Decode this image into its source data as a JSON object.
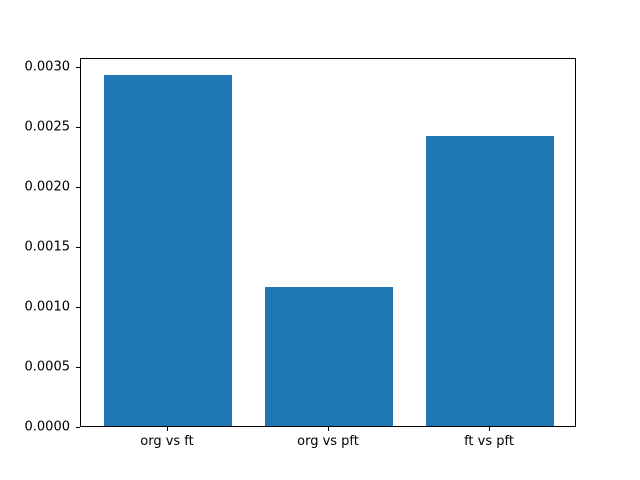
{
  "chart_data": {
    "type": "bar",
    "categories": [
      "org vs ft",
      "org vs pft",
      "ft vs pft"
    ],
    "values": [
      0.00293,
      0.00116,
      0.00242
    ],
    "title": "",
    "xlabel": "",
    "ylabel": "",
    "ylim": [
      0,
      0.003077
    ],
    "yticks": [
      0,
      0.0005,
      0.001,
      0.0015,
      0.002,
      0.0025,
      0.003
    ],
    "ytick_labels": [
      "0.0000",
      "0.0005",
      "0.0010",
      "0.0015",
      "0.0020",
      "0.0025",
      "0.0030"
    ],
    "bar_color": "#1f77b4",
    "grid": false,
    "legend": null,
    "bar_width_fraction": 0.8
  }
}
